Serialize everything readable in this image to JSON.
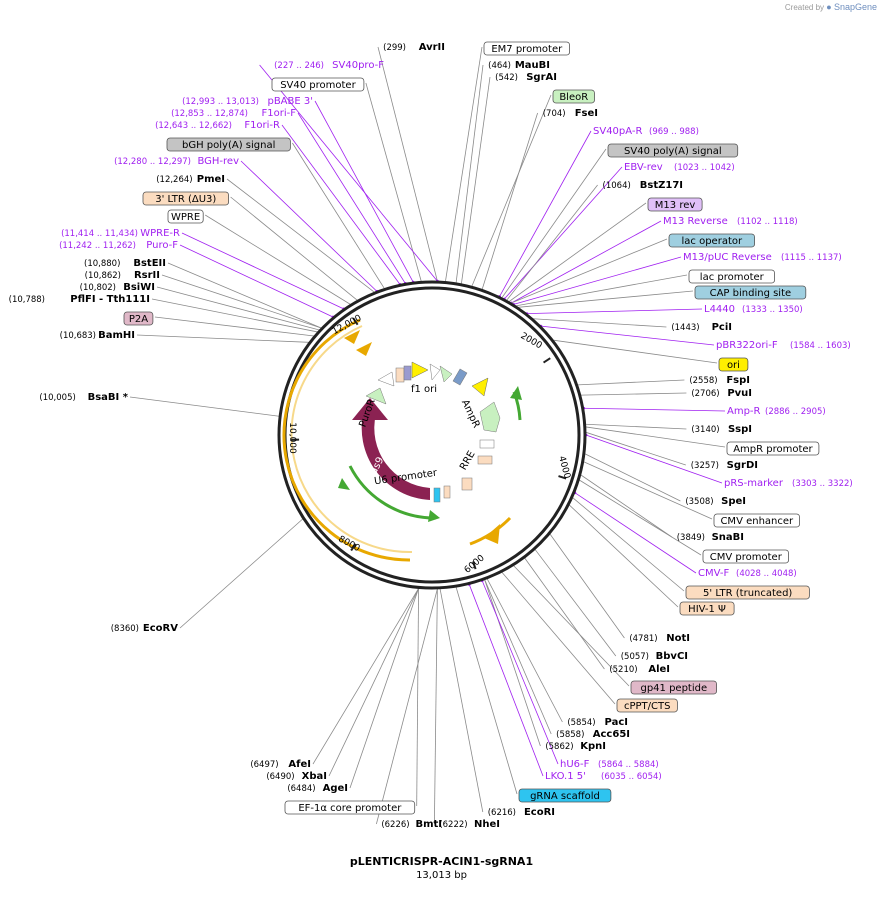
{
  "credit": {
    "prefix": "Created by",
    "brand": "SnapGene"
  },
  "plasmid": {
    "name": "pLENTICRISPR-ACIN1-sgRNA1",
    "length": "13,013 bp"
  },
  "colors": {
    "enzyme_line": "#8a8a8a",
    "primer": "#a020f0",
    "feature_text": "#000000",
    "backbone": "#222222",
    "cas9": "#8b2252",
    "orange_arrow": "#e8a800",
    "green_arrow": "#44a833"
  },
  "ring_ticks": [
    {
      "label": "2000"
    },
    {
      "label": "4000"
    },
    {
      "label": "6000"
    },
    {
      "label": "8000"
    },
    {
      "label": "10,000"
    },
    {
      "label": "12,000"
    }
  ],
  "inner_labels": [
    {
      "text": "f1 ori"
    },
    {
      "text": "AmpR"
    },
    {
      "text": "RRE"
    },
    {
      "text": "U6 promoter"
    },
    {
      "text": "PuroR"
    },
    {
      "text": "Cas9"
    }
  ],
  "labels": [
    {
      "kind": "enzyme",
      "name": "AvrII",
      "pos": "(299)"
    },
    {
      "kind": "feature",
      "name": "EM7 promoter",
      "bg": "#ffffff"
    },
    {
      "kind": "enzyme",
      "name": "MauBI",
      "pos": "(464)"
    },
    {
      "kind": "enzyme",
      "name": "SgrAI",
      "pos": "(542)"
    },
    {
      "kind": "feature",
      "name": "BleoR",
      "bg": "#c8f0c0"
    },
    {
      "kind": "enzyme",
      "name": "FseI",
      "pos": "(704)"
    },
    {
      "kind": "primer",
      "name": "SV40pA-R",
      "pos": "(969 .. 988)"
    },
    {
      "kind": "feature",
      "name": "SV40 poly(A) signal",
      "bg": "#c4c4c4"
    },
    {
      "kind": "primer",
      "name": "EBV-rev",
      "pos": "(1023 .. 1042)"
    },
    {
      "kind": "enzyme",
      "name": "BstZ17I",
      "pos": "(1064)"
    },
    {
      "kind": "feature",
      "name": "M13 rev",
      "bg": "#e0c0f8"
    },
    {
      "kind": "primer",
      "name": "M13 Reverse",
      "pos": "(1102 .. 1118)"
    },
    {
      "kind": "feature",
      "name": "lac operator",
      "bg": "#9fcfe0"
    },
    {
      "kind": "primer",
      "name": "M13/pUC Reverse",
      "pos": "(1115 .. 1137)"
    },
    {
      "kind": "feature",
      "name": "lac promoter",
      "bg": "#ffffff"
    },
    {
      "kind": "feature",
      "name": "CAP binding site",
      "bg": "#9fcfe0"
    },
    {
      "kind": "primer",
      "name": "L4440",
      "pos": "(1333 .. 1350)"
    },
    {
      "kind": "enzyme",
      "name": "PciI",
      "pos": "(1443)"
    },
    {
      "kind": "primer",
      "name": "pBR322ori-F",
      "pos": "(1584 .. 1603)"
    },
    {
      "kind": "feature",
      "name": "ori",
      "bg": "#ffef00"
    },
    {
      "kind": "enzyme",
      "name": "FspI",
      "pos": "(2558)"
    },
    {
      "kind": "enzyme",
      "name": "PvuI",
      "pos": "(2706)"
    },
    {
      "kind": "primer",
      "name": "Amp-R",
      "pos": "(2886 .. 2905)"
    },
    {
      "kind": "enzyme",
      "name": "SspI",
      "pos": "(3140)"
    },
    {
      "kind": "feature",
      "name": "AmpR promoter",
      "bg": "#ffffff"
    },
    {
      "kind": "enzyme",
      "name": "SgrDI",
      "pos": "(3257)"
    },
    {
      "kind": "primer",
      "name": "pRS-marker",
      "pos": "(3303 .. 3322)"
    },
    {
      "kind": "enzyme",
      "name": "SpeI",
      "pos": "(3508)"
    },
    {
      "kind": "feature",
      "name": "CMV enhancer",
      "bg": "#ffffff"
    },
    {
      "kind": "enzyme",
      "name": "SnaBI",
      "pos": "(3849)"
    },
    {
      "kind": "feature",
      "name": "CMV promoter",
      "bg": "#ffffff"
    },
    {
      "kind": "primer",
      "name": "CMV-F",
      "pos": "(4028 .. 4048)"
    },
    {
      "kind": "feature",
      "name": "5' LTR (truncated)",
      "bg": "#fbdcc0"
    },
    {
      "kind": "feature",
      "name": "HIV-1 Ψ",
      "bg": "#fbdcc0"
    },
    {
      "kind": "enzyme",
      "name": "NotI",
      "pos": "(4781)"
    },
    {
      "kind": "enzyme",
      "name": "BbvCI",
      "pos": "(5057)"
    },
    {
      "kind": "enzyme",
      "name": "AleI",
      "pos": "(5210)"
    },
    {
      "kind": "feature",
      "name": "gp41 peptide",
      "bg": "#e0b8c8"
    },
    {
      "kind": "feature",
      "name": "cPPT/CTS",
      "bg": "#fbdcc0"
    },
    {
      "kind": "enzyme",
      "name": "PacI",
      "pos": "(5854)"
    },
    {
      "kind": "enzyme",
      "name": "Acc65I",
      "pos": "(5858)"
    },
    {
      "kind": "enzyme",
      "name": "KpnI",
      "pos": "(5862)"
    },
    {
      "kind": "primer",
      "name": "hU6-F",
      "pos": "(5864 .. 5884)"
    },
    {
      "kind": "primer",
      "name": "LKO.1 5'",
      "pos": "(6035 .. 6054)"
    },
    {
      "kind": "feature",
      "name": "gRNA scaffold",
      "bg": "#2ec4f0"
    },
    {
      "kind": "enzyme",
      "name": "EcoRI",
      "pos": "(6216)"
    },
    {
      "kind": "enzyme",
      "name": "NheI",
      "pos": "(6222)"
    },
    {
      "kind": "enzyme",
      "name": "BmtI",
      "pos": "(6226)"
    },
    {
      "kind": "feature",
      "name": "EF-1α core promoter",
      "bg": "#ffffff"
    },
    {
      "kind": "enzyme",
      "name": "AgeI",
      "pos": "(6484)"
    },
    {
      "kind": "enzyme",
      "name": "XbaI",
      "pos": "(6490)"
    },
    {
      "kind": "enzyme",
      "name": "AfeI",
      "pos": "(6497)"
    },
    {
      "kind": "enzyme",
      "name": "EcoRV",
      "pos": "(8360)"
    },
    {
      "kind": "enzyme",
      "name": "BsaBI *",
      "pos": "(10,005)"
    },
    {
      "kind": "enzyme",
      "name": "BamHI",
      "pos": "(10,683)"
    },
    {
      "kind": "feature",
      "name": "P2A",
      "bg": "#e0b8c8"
    },
    {
      "kind": "enzyme",
      "name": "PflFI - Tth111I",
      "pos": "(10,788)"
    },
    {
      "kind": "enzyme",
      "name": "BsiWI",
      "pos": "(10,802)"
    },
    {
      "kind": "enzyme",
      "name": "RsrII",
      "pos": "(10,862)"
    },
    {
      "kind": "enzyme",
      "name": "BstEII",
      "pos": "(10,880)"
    },
    {
      "kind": "primer",
      "name": "Puro-F",
      "pos": "(11,242 .. 11,262)"
    },
    {
      "kind": "primer",
      "name": "WPRE-R",
      "pos": "(11,414 .. 11,434)"
    },
    {
      "kind": "feature",
      "name": "WPRE",
      "bg": "#ffffff"
    },
    {
      "kind": "feature",
      "name": "3' LTR (ΔU3)",
      "bg": "#fbdcc0"
    },
    {
      "kind": "enzyme",
      "name": "PmeI",
      "pos": "(12,264)"
    },
    {
      "kind": "primer",
      "name": "BGH-rev",
      "pos": "(12,280 .. 12,297)"
    },
    {
      "kind": "feature",
      "name": "bGH poly(A) signal",
      "bg": "#c4c4c4"
    },
    {
      "kind": "primer",
      "name": "F1ori-R",
      "pos": "(12,643 .. 12,662)"
    },
    {
      "kind": "primer",
      "name": "F1ori-F",
      "pos": "(12,853 .. 12,874)"
    },
    {
      "kind": "primer",
      "name": "pBABE 3'",
      "pos": "(12,993 .. 13,013)"
    },
    {
      "kind": "feature",
      "name": "SV40 promoter",
      "bg": "#ffffff"
    },
    {
      "kind": "primer",
      "name": "SV40pro-F",
      "pos": "(227 .. 246)"
    }
  ]
}
